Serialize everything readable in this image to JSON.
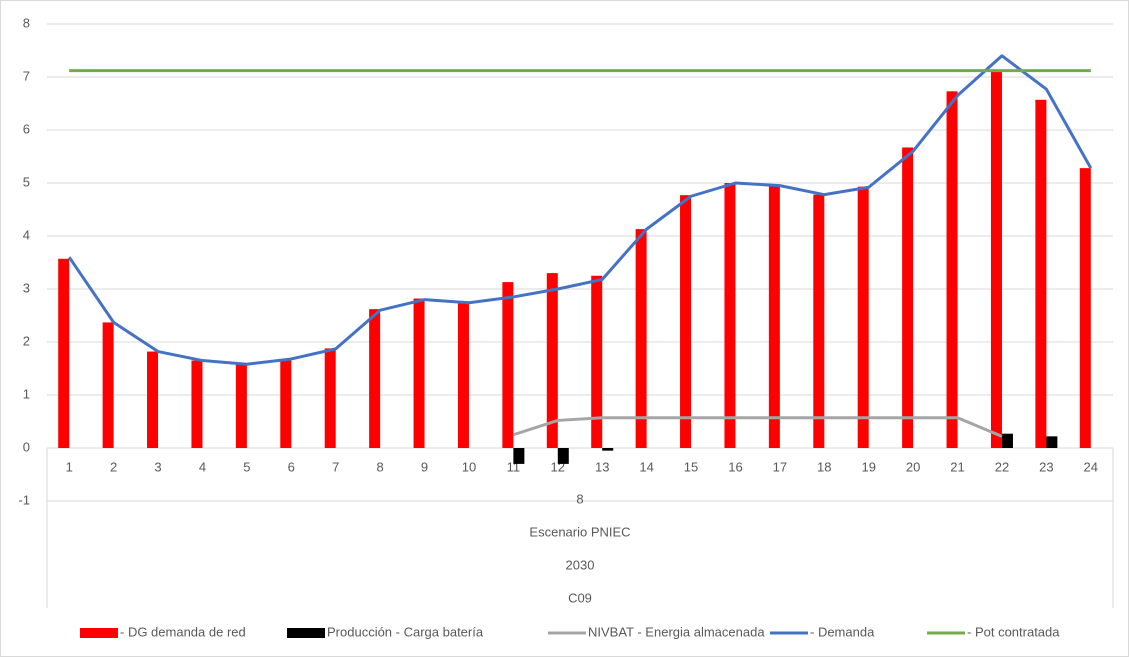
{
  "chart_data": {
    "type": "combo",
    "categories": [
      "1",
      "2",
      "3",
      "4",
      "5",
      "6",
      "7",
      "8",
      "9",
      "10",
      "11",
      "12",
      "13",
      "14",
      "15",
      "16",
      "17",
      "18",
      "19",
      "20",
      "21",
      "22",
      "23",
      "24"
    ],
    "x_group_labels": [
      "8",
      "Escenario PNIEC",
      "2030",
      "C09"
    ],
    "ylim": [
      -1,
      8
    ],
    "yticks": [
      -1,
      0,
      1,
      2,
      3,
      4,
      5,
      6,
      7,
      8
    ],
    "grid": true,
    "legend": "bottom",
    "series": [
      {
        "name": " - DG demanda de red",
        "type": "bar",
        "color": "#ff0000",
        "values": [
          3.57,
          2.37,
          1.82,
          1.65,
          1.58,
          1.68,
          1.88,
          2.62,
          2.82,
          2.75,
          3.13,
          3.3,
          3.25,
          4.13,
          4.77,
          5.0,
          4.95,
          4.78,
          4.93,
          5.67,
          6.73,
          7.13,
          6.57,
          5.28
        ]
      },
      {
        "name": "Producción - Carga batería",
        "type": "bar",
        "color": "#000000",
        "values": [
          0,
          0,
          0,
          0,
          0,
          0,
          0,
          0,
          0,
          0,
          -0.3,
          -0.3,
          -0.05,
          0,
          0,
          0,
          0,
          0,
          0,
          0,
          0,
          0.27,
          0.22,
          0
        ]
      },
      {
        "name": "NIVBAT - Energia almacenada",
        "type": "line",
        "color": "#a5a5a5",
        "values": [
          null,
          null,
          null,
          null,
          null,
          null,
          null,
          null,
          null,
          null,
          0.25,
          0.52,
          0.57,
          0.57,
          0.57,
          0.57,
          0.57,
          0.57,
          0.57,
          0.57,
          0.57,
          0.22,
          null,
          null
        ]
      },
      {
        "name": " - Demanda",
        "type": "line",
        "color": "#4472c4",
        "values": [
          3.6,
          2.37,
          1.82,
          1.65,
          1.58,
          1.68,
          1.87,
          2.6,
          2.8,
          2.74,
          2.85,
          3.0,
          3.18,
          4.13,
          4.75,
          5.0,
          4.95,
          4.78,
          4.92,
          5.6,
          6.65,
          7.4,
          6.77,
          5.28
        ]
      },
      {
        "name": " - Pot contratada",
        "type": "line",
        "color": "#70ad47",
        "values": [
          7.12,
          7.12,
          7.12,
          7.12,
          7.12,
          7.12,
          7.12,
          7.12,
          7.12,
          7.12,
          7.12,
          7.12,
          7.12,
          7.12,
          7.12,
          7.12,
          7.12,
          7.12,
          7.12,
          7.12,
          7.12,
          7.12,
          7.12,
          7.12
        ]
      }
    ]
  }
}
